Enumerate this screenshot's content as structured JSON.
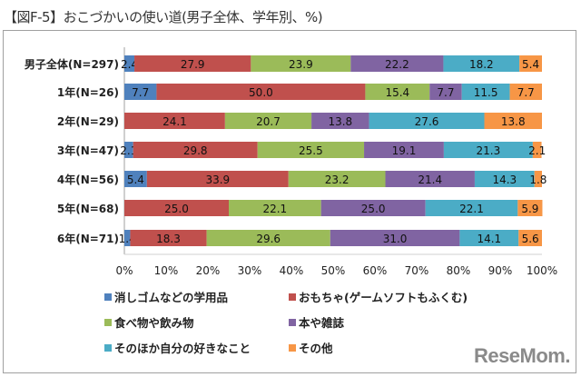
{
  "chart_data": {
    "type": "bar",
    "orientation": "horizontal",
    "stacked": true,
    "title": "【図F-5】おこづかいの使い道(男子全体、学年別、%)",
    "categories": [
      "男子全体(N=297)",
      "1年(N=26)",
      "2年(N=29)",
      "3年(N=47)",
      "4年(N=56)",
      "5年(N=68)",
      "6年(N=71)"
    ],
    "series": [
      {
        "name": "消しゴムなどの学用品",
        "color": "#4f81bd",
        "values": [
          2.4,
          7.7,
          0,
          2.1,
          5.4,
          0,
          1.4
        ]
      },
      {
        "name": "おもちゃ(ゲームソフトもふくむ)",
        "color": "#c0504d",
        "values": [
          27.9,
          50.0,
          24.1,
          29.8,
          33.9,
          25.0,
          18.3
        ]
      },
      {
        "name": "食べ物や飲み物",
        "color": "#9bbb59",
        "values": [
          23.9,
          15.4,
          20.7,
          25.5,
          23.2,
          22.1,
          29.6
        ]
      },
      {
        "name": "本や雑誌",
        "color": "#8064a2",
        "values": [
          22.2,
          7.7,
          13.8,
          19.1,
          21.4,
          25.0,
          31.0
        ]
      },
      {
        "name": "そのほか自分の好きなこと",
        "color": "#4bacc6",
        "values": [
          18.2,
          11.5,
          27.6,
          21.3,
          14.3,
          22.1,
          14.1
        ]
      },
      {
        "name": "その他",
        "color": "#f79646",
        "values": [
          5.4,
          7.7,
          13.8,
          2.1,
          1.8,
          5.9,
          5.6
        ]
      }
    ],
    "xlim": [
      0,
      100
    ],
    "xticks": [
      "0%",
      "10%",
      "20%",
      "30%",
      "40%",
      "50%",
      "60%",
      "70%",
      "80%",
      "90%",
      "100%"
    ],
    "grid": false,
    "legend_placement": "bottom"
  },
  "logo": "ReseMom"
}
